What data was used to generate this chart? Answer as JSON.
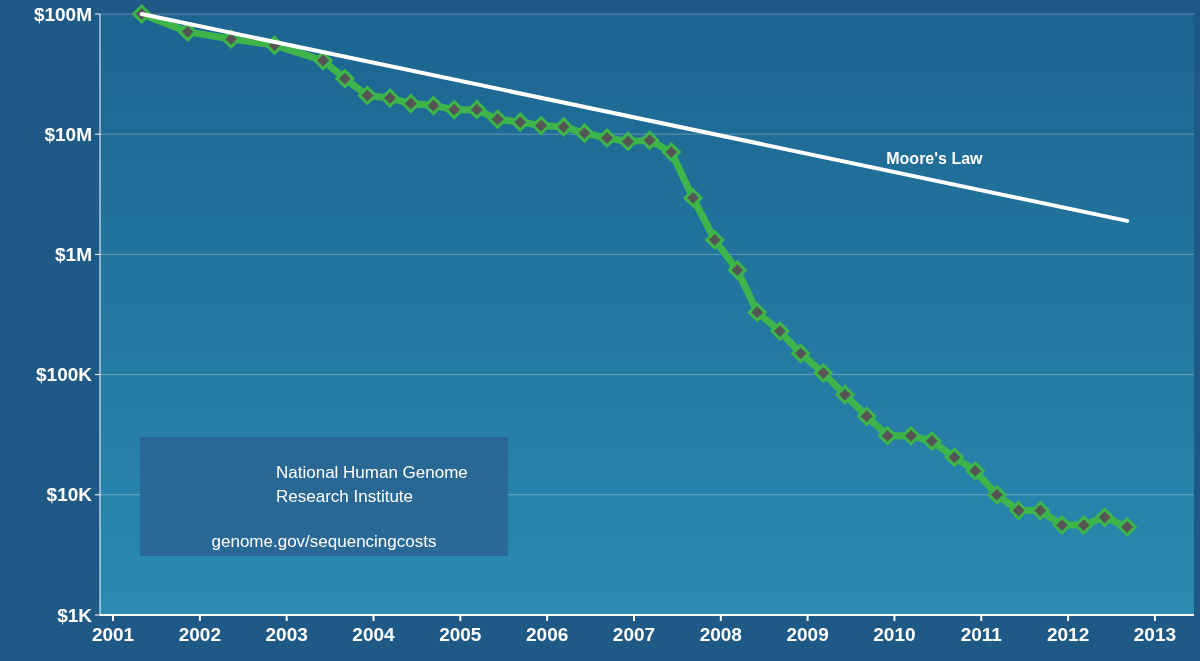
{
  "chart_data": {
    "type": "line",
    "log": "y",
    "grid": "y",
    "marker": "diamond",
    "line_style": "solid",
    "xlim": [
      2000.85,
      2013.45
    ],
    "xticks": [
      2001,
      2002,
      2003,
      2004,
      2005,
      2006,
      2007,
      2008,
      2009,
      2010,
      2011,
      2012,
      2013
    ],
    "ylim": [
      1000,
      100000000
    ],
    "yticks": [
      {
        "value": 1000,
        "label": "$1K"
      },
      {
        "value": 10000,
        "label": "$10K"
      },
      {
        "value": 100000,
        "label": "$100K"
      },
      {
        "value": 1000000,
        "label": "$1M"
      },
      {
        "value": 10000000,
        "label": "$10M"
      },
      {
        "value": 100000000,
        "label": "$100M"
      }
    ],
    "series": [
      {
        "color": "#3db54a",
        "x": [
          2001.33,
          2001.86,
          2002.36,
          2002.86,
          2003.42,
          2003.67,
          2003.93,
          2004.19,
          2004.43,
          2004.69,
          2004.93,
          2005.19,
          2005.43,
          2005.69,
          2005.93,
          2006.19,
          2006.43,
          2006.69,
          2006.93,
          2007.18,
          2007.43,
          2007.68,
          2007.93,
          2008.19,
          2008.42,
          2008.68,
          2008.92,
          2009.18,
          2009.43,
          2009.68,
          2009.92,
          2010.19,
          2010.43,
          2010.69,
          2010.93,
          2011.18,
          2011.43,
          2011.68,
          2011.93,
          2012.18,
          2012.42,
          2012.68
        ],
        "values": [
          100000000,
          71000000,
          62000000,
          55000000,
          41000000,
          29000000,
          21000000,
          20000000,
          18000000,
          17300000,
          16000000,
          16000000,
          13300000,
          12600000,
          11800000,
          11500000,
          10200000,
          9300000,
          8700000,
          8900000,
          7100000,
          2950000,
          1320000,
          740000,
          330000,
          230000,
          150000,
          103000,
          68000,
          45000,
          31000,
          31000,
          28000,
          20500,
          15800,
          10000,
          7400,
          7400,
          5600,
          5600,
          6500,
          5400
        ]
      },
      {
        "name": "Moore's Law",
        "color": "#ffffff",
        "marker": "none",
        "x": [
          2001.33,
          2012.68
        ],
        "values": [
          100000000,
          1900000
        ]
      }
    ],
    "annotations": [
      "National Human Genome Research Institute",
      "genome.gov/sequencingcosts"
    ]
  }
}
